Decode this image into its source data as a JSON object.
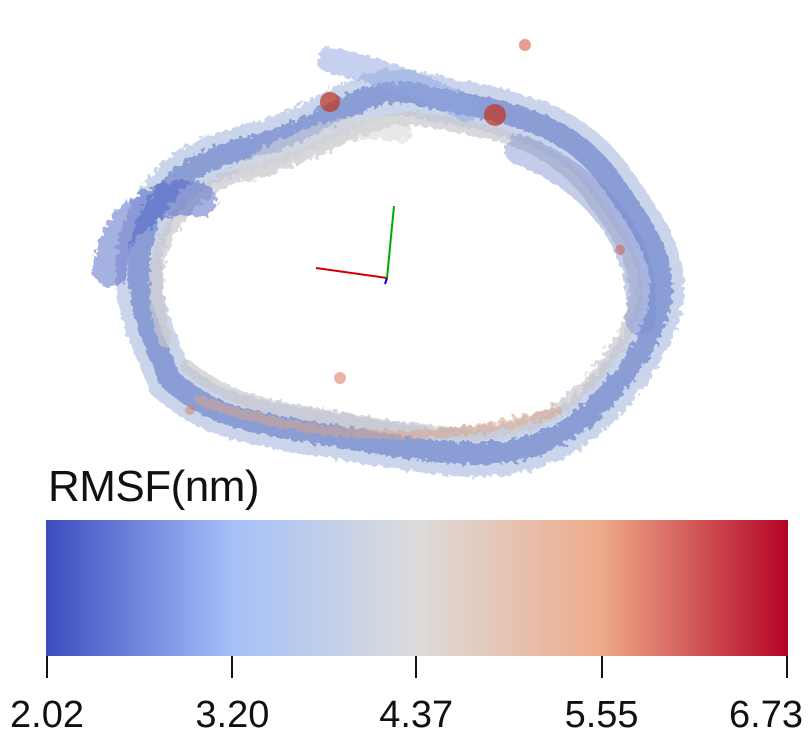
{
  "colorbar": {
    "title": "RMSF(nm)",
    "min": 2.02,
    "max": 6.73,
    "ticks": [
      "2.02",
      "3.20",
      "4.37",
      "5.55",
      "6.73"
    ],
    "colormap": "coolwarm",
    "stops": [
      "#3b4cc0",
      "#a5c0f8",
      "#dcdcdc",
      "#eeaa88",
      "#b40426"
    ]
  },
  "axes_gizmo": {
    "colors": [
      "#cc0000",
      "#00aa00",
      "#0000cc"
    ]
  }
}
